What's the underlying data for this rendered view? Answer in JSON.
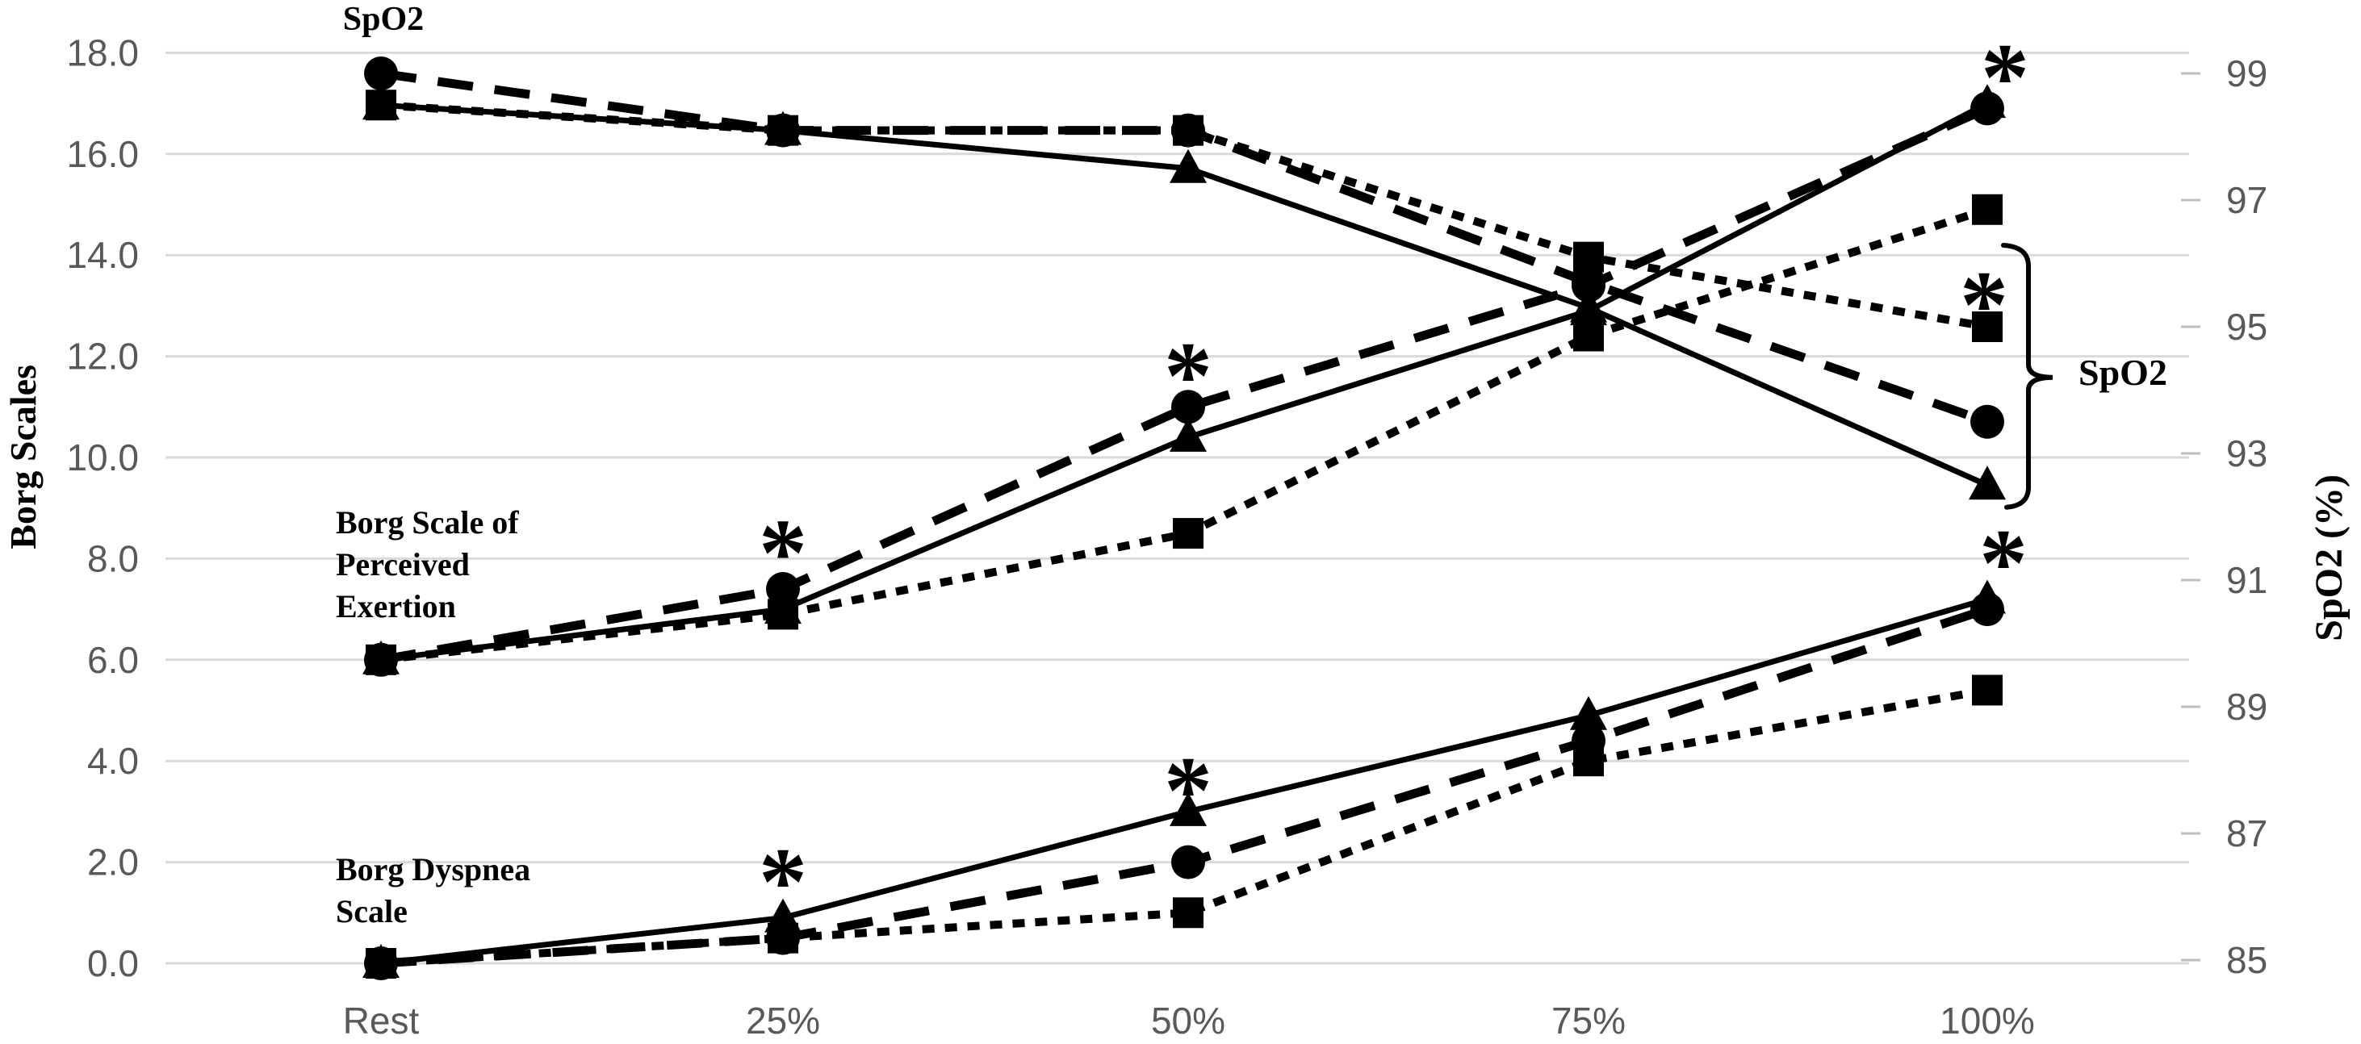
{
  "chart_data": {
    "type": "line",
    "title": "",
    "categories": [
      "Rest",
      "25%",
      "50%",
      "75%",
      "100%"
    ],
    "left_axis": {
      "label": "Borg Scales",
      "min": 0,
      "max": 18,
      "tick_step": 2,
      "tick_labels": [
        "18.0",
        "16.0",
        "14.0",
        "12.0",
        "10.0",
        "8.0",
        "6.0",
        "4.0",
        "2.0",
        "0.0"
      ]
    },
    "right_axis": {
      "label": "SpO2 (%)",
      "min": 85,
      "max": 99,
      "tick_step": 2,
      "tick_labels": [
        "99",
        "97",
        "95",
        "93",
        "91",
        "89",
        "87",
        "85"
      ]
    },
    "grid": true,
    "legend": "none",
    "series": [
      {
        "name": "SpO2 triangle solid",
        "group": "SpO2",
        "axis": "right",
        "marker": "triangle",
        "line": "solid",
        "values": [
          98.5,
          98.1,
          97.5,
          95.3,
          92.5
        ]
      },
      {
        "name": "SpO2 circle dashed",
        "group": "SpO2",
        "axis": "right",
        "marker": "circle",
        "line": "dashed",
        "values": [
          99.0,
          98.1,
          98.1,
          95.7,
          93.5
        ]
      },
      {
        "name": "SpO2 square dotted",
        "group": "SpO2",
        "axis": "right",
        "marker": "square",
        "line": "dotted",
        "values": [
          98.5,
          98.1,
          98.1,
          96.1,
          95.0
        ]
      },
      {
        "name": "Borg Perceived Exertion triangle solid",
        "group": "Borg Scale of Perceived Exertion",
        "axis": "left",
        "marker": "triangle",
        "line": "solid",
        "values": [
          6.0,
          7.0,
          10.4,
          12.9,
          17.0
        ]
      },
      {
        "name": "Borg Perceived Exertion circle dashed",
        "group": "Borg Scale of Perceived Exertion",
        "axis": "left",
        "marker": "circle",
        "line": "dashed",
        "values": [
          6.0,
          7.4,
          11.0,
          13.4,
          16.9
        ]
      },
      {
        "name": "Borg Perceived Exertion square dotted",
        "group": "Borg Scale of Perceived Exertion",
        "axis": "left",
        "marker": "square",
        "line": "dotted",
        "values": [
          6.0,
          6.9,
          8.5,
          12.4,
          14.9
        ]
      },
      {
        "name": "Borg Dyspnea triangle solid",
        "group": "Borg Dyspnea Scale",
        "axis": "left",
        "marker": "triangle",
        "line": "solid",
        "values": [
          0.0,
          0.9,
          3.0,
          4.9,
          7.2
        ]
      },
      {
        "name": "Borg Dyspnea circle dashed",
        "group": "Borg Dyspnea Scale",
        "axis": "left",
        "marker": "circle",
        "line": "dashed",
        "values": [
          0.0,
          0.5,
          2.0,
          4.4,
          7.0
        ]
      },
      {
        "name": "Borg Dyspnea square dotted",
        "group": "Borg Dyspnea Scale",
        "axis": "left",
        "marker": "square",
        "line": "dotted",
        "values": [
          0.0,
          0.5,
          1.0,
          4.0,
          5.4
        ]
      }
    ],
    "annotations": {
      "group_labels": [
        {
          "text": "SpO2"
        },
        {
          "text": "Borg Scale of\nPerceived\nExertion"
        },
        {
          "text": "Borg Dyspnea\nScale"
        },
        {
          "text": "SpO2"
        }
      ],
      "asterisk_symbol": "*",
      "asterisks": [
        {
          "category": "25%",
          "axis": "left",
          "value": 8.4,
          "dx": 0
        },
        {
          "category": "50%",
          "axis": "left",
          "value": 11.9,
          "dx": 0
        },
        {
          "category": "100%",
          "axis": "left",
          "value": 17.8,
          "dx": 22
        },
        {
          "category": "100%",
          "axis": "left",
          "value": 13.3,
          "dx": -4
        },
        {
          "category": "25%",
          "axis": "left",
          "value": 1.9,
          "dx": 0
        },
        {
          "category": "50%",
          "axis": "left",
          "value": 3.7,
          "dx": 0
        },
        {
          "category": "100%",
          "axis": "left",
          "value": 8.2,
          "dx": 20
        }
      ],
      "bracket": {
        "axis": "right",
        "value_top": 96.3,
        "value_mid": 94.2,
        "value_bottom": 92.15,
        "label": "SpO2"
      }
    },
    "colors": {
      "series": "#000000",
      "grid": "#d9d9d9",
      "tick": "#bfbfbf",
      "tick_label": "#595959"
    }
  }
}
